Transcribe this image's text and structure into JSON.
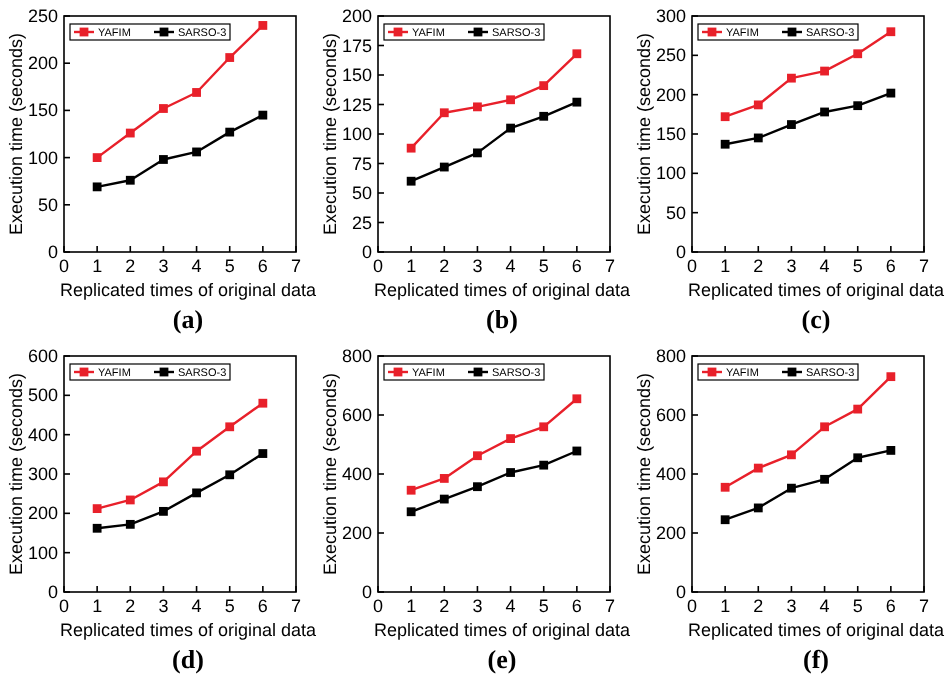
{
  "chart_data": [
    {
      "type": "line",
      "title": "(a)",
      "xlabel": "Replicated times of original data",
      "ylabel": "Execution time (seconds)",
      "x": [
        1,
        2,
        3,
        4,
        5,
        6
      ],
      "xlim": [
        0,
        7
      ],
      "xticks": [
        0,
        1,
        2,
        3,
        4,
        5,
        6,
        7
      ],
      "ylim": [
        0,
        250
      ],
      "yticks": [
        0,
        50,
        100,
        150,
        200,
        250
      ],
      "marker": "square",
      "legend": "top left",
      "series": [
        {
          "name": "YAFIM",
          "color": "#e8202a",
          "values": [
            100,
            126,
            152,
            169,
            206,
            240
          ]
        },
        {
          "name": "SARSO-3",
          "color": "#000000",
          "values": [
            69,
            76,
            98,
            106,
            127,
            145
          ]
        }
      ]
    },
    {
      "type": "line",
      "title": "(b)",
      "xlabel": "Replicated times of original data",
      "ylabel": "Execution time (seconds)",
      "x": [
        1,
        2,
        3,
        4,
        5,
        6
      ],
      "xlim": [
        0,
        7
      ],
      "xticks": [
        0,
        1,
        2,
        3,
        4,
        5,
        6,
        7
      ],
      "ylim": [
        0,
        200
      ],
      "yticks": [
        0,
        25,
        50,
        75,
        100,
        125,
        150,
        175,
        200
      ],
      "marker": "square",
      "legend": "top left",
      "series": [
        {
          "name": "YAFIM",
          "color": "#e8202a",
          "values": [
            88,
            118,
            123,
            129,
            141,
            168
          ]
        },
        {
          "name": "SARSO-3",
          "color": "#000000",
          "values": [
            60,
            72,
            84,
            105,
            115,
            127
          ]
        }
      ]
    },
    {
      "type": "line",
      "title": "(c)",
      "xlabel": "Replicated times of original data",
      "ylabel": "Execution time (seconds)",
      "x": [
        1,
        2,
        3,
        4,
        5,
        6
      ],
      "xlim": [
        0,
        7
      ],
      "xticks": [
        0,
        1,
        2,
        3,
        4,
        5,
        6,
        7
      ],
      "ylim": [
        0,
        300
      ],
      "yticks": [
        0,
        50,
        100,
        150,
        200,
        250,
        300
      ],
      "marker": "square",
      "legend": "top left",
      "series": [
        {
          "name": "YAFIM",
          "color": "#e8202a",
          "values": [
            172,
            187,
            221,
            230,
            252,
            280
          ]
        },
        {
          "name": "SARSO-3",
          "color": "#000000",
          "values": [
            137,
            145,
            162,
            178,
            186,
            202
          ]
        }
      ]
    },
    {
      "type": "line",
      "title": "(d)",
      "xlabel": "Replicated times of original data",
      "ylabel": "Execution time (seconds)",
      "x": [
        1,
        2,
        3,
        4,
        5,
        6
      ],
      "xlim": [
        0,
        7
      ],
      "xticks": [
        0,
        1,
        2,
        3,
        4,
        5,
        6,
        7
      ],
      "ylim": [
        0,
        600
      ],
      "yticks": [
        0,
        100,
        200,
        300,
        400,
        500,
        600
      ],
      "marker": "square",
      "legend": "top left",
      "series": [
        {
          "name": "YAFIM",
          "color": "#e8202a",
          "values": [
            212,
            234,
            280,
            358,
            420,
            480
          ]
        },
        {
          "name": "SARSO-3",
          "color": "#000000",
          "values": [
            162,
            172,
            205,
            252,
            298,
            352
          ]
        }
      ]
    },
    {
      "type": "line",
      "title": "(e)",
      "xlabel": "Replicated times of original data",
      "ylabel": "Execution time (seconds)",
      "x": [
        1,
        2,
        3,
        4,
        5,
        6
      ],
      "xlim": [
        0,
        7
      ],
      "xticks": [
        0,
        1,
        2,
        3,
        4,
        5,
        6,
        7
      ],
      "ylim": [
        0,
        800
      ],
      "yticks": [
        0,
        200,
        400,
        600,
        800
      ],
      "marker": "square",
      "legend": "top left",
      "series": [
        {
          "name": "YAFIM",
          "color": "#e8202a",
          "values": [
            345,
            385,
            462,
            520,
            560,
            655
          ]
        },
        {
          "name": "SARSO-3",
          "color": "#000000",
          "values": [
            272,
            315,
            357,
            405,
            430,
            478
          ]
        }
      ]
    },
    {
      "type": "line",
      "title": "(f)",
      "xlabel": "Replicated times of original data",
      "ylabel": "Execution time (seconds)",
      "x": [
        1,
        2,
        3,
        4,
        5,
        6
      ],
      "xlim": [
        0,
        7
      ],
      "xticks": [
        0,
        1,
        2,
        3,
        4,
        5,
        6,
        7
      ],
      "ylim": [
        0,
        800
      ],
      "yticks": [
        0,
        200,
        400,
        600,
        800
      ],
      "marker": "square",
      "legend": "top left",
      "series": [
        {
          "name": "YAFIM",
          "color": "#e8202a",
          "values": [
            355,
            420,
            465,
            560,
            620,
            730
          ]
        },
        {
          "name": "SARSO-3",
          "color": "#000000",
          "values": [
            245,
            285,
            352,
            382,
            455,
            480
          ]
        }
      ]
    }
  ]
}
